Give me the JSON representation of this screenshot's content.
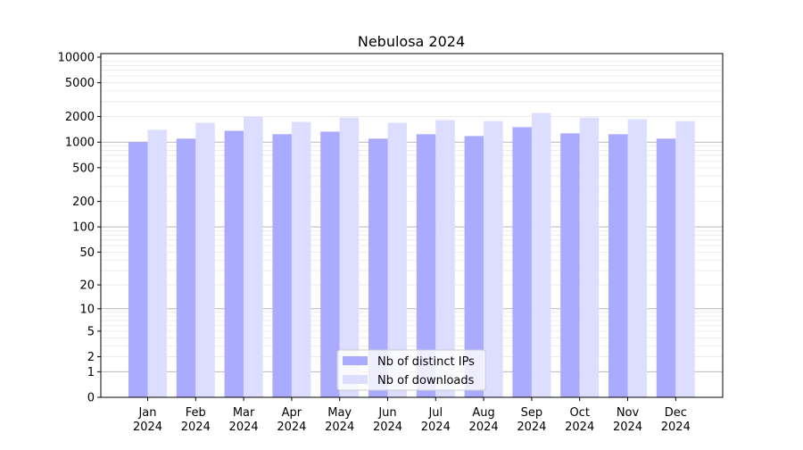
{
  "chart_data": {
    "type": "bar",
    "title": "Nebulosa 2024",
    "xlabel": "",
    "ylabel": "",
    "yscale": "symlog (log10(1+v))",
    "ylim": [
      0,
      11000
    ],
    "yticks": [
      0,
      1,
      2,
      5,
      10,
      20,
      50,
      100,
      200,
      500,
      1000,
      2000,
      5000,
      10000
    ],
    "grid": true,
    "legend_position": "bottom-center",
    "categories": [
      "Jan\n2024",
      "Feb\n2024",
      "Mar\n2024",
      "Apr\n2024",
      "May\n2024",
      "Jun\n2024",
      "Jul\n2024",
      "Aug\n2024",
      "Sep\n2024",
      "Oct\n2024",
      "Nov\n2024",
      "Dec\n2024"
    ],
    "category_months": [
      "Jan",
      "Feb",
      "Mar",
      "Apr",
      "May",
      "Jun",
      "Jul",
      "Aug",
      "Sep",
      "Oct",
      "Nov",
      "Dec"
    ],
    "category_year": "2024",
    "series": [
      {
        "name": "Nb of distinct IPs",
        "color": "#aaaaff",
        "values": [
          1000,
          1100,
          1360,
          1240,
          1330,
          1100,
          1240,
          1180,
          1500,
          1270,
          1240,
          1100
        ]
      },
      {
        "name": "Nb of downloads",
        "color": "#ddddff",
        "values": [
          1400,
          1690,
          2000,
          1730,
          1950,
          1690,
          1820,
          1770,
          2200,
          1950,
          1860,
          1770
        ]
      }
    ]
  }
}
